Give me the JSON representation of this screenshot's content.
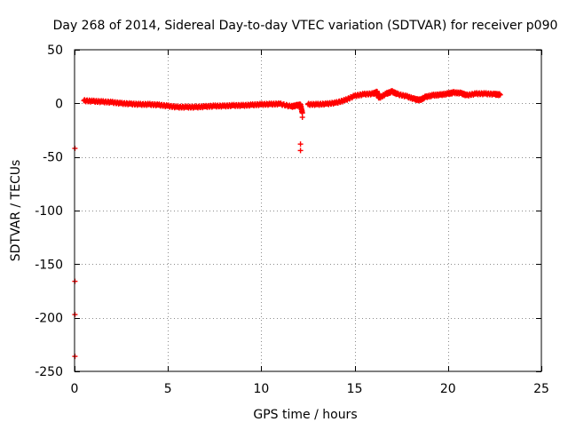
{
  "chart_data": {
    "type": "scatter",
    "title": "Day 268 of 2014, Sidereal Day-to-day VTEC variation (SDTVAR) for receiver p090",
    "xlabel": "GPS time / hours",
    "ylabel": "SDTVAR / TECUs",
    "xlim": [
      0,
      25
    ],
    "ylim": [
      -250,
      50
    ],
    "xticks": [
      0,
      5,
      10,
      15,
      20,
      25
    ],
    "yticks": [
      50,
      0,
      -50,
      -100,
      -150,
      -200,
      -250
    ],
    "grid": true,
    "series_color": "#ff0000",
    "marker": "plus",
    "series": [
      {
        "name": "SDTVAR",
        "points": [
          [
            0.5,
            2.5
          ],
          [
            1.0,
            2.0
          ],
          [
            1.5,
            1.5
          ],
          [
            2.0,
            1.0
          ],
          [
            2.5,
            0.0
          ],
          [
            3.0,
            -0.5
          ],
          [
            3.5,
            -1.0
          ],
          [
            4.0,
            -1.0
          ],
          [
            4.5,
            -1.5
          ],
          [
            5.0,
            -2.5
          ],
          [
            5.5,
            -3.5
          ],
          [
            6.0,
            -3.5
          ],
          [
            6.5,
            -3.5
          ],
          [
            7.0,
            -3.0
          ],
          [
            7.5,
            -2.5
          ],
          [
            8.0,
            -2.5
          ],
          [
            8.5,
            -2.0
          ],
          [
            9.0,
            -2.0
          ],
          [
            9.5,
            -1.5
          ],
          [
            10.0,
            -1.0
          ],
          [
            10.5,
            -0.8
          ],
          [
            11.0,
            -0.5
          ],
          [
            11.6,
            -3.0
          ],
          [
            11.9,
            -2.0
          ],
          [
            12.1,
            -1.5
          ],
          [
            12.2,
            -9.0
          ],
          [
            12.2,
            -13.0
          ],
          [
            12.1,
            -38.0
          ],
          [
            12.1,
            -44.0
          ],
          [
            12.5,
            -1.0
          ],
          [
            13.0,
            -1.0
          ],
          [
            13.5,
            -0.5
          ],
          [
            14.0,
            0.5
          ],
          [
            14.5,
            3.0
          ],
          [
            15.0,
            7.0
          ],
          [
            15.5,
            8.5
          ],
          [
            16.0,
            9.0
          ],
          [
            16.2,
            10.5
          ],
          [
            16.3,
            5.0
          ],
          [
            16.7,
            9.0
          ],
          [
            17.0,
            11.0
          ],
          [
            17.3,
            8.5
          ],
          [
            17.8,
            6.5
          ],
          [
            18.2,
            4.0
          ],
          [
            18.5,
            3.0
          ],
          [
            18.8,
            6.0
          ],
          [
            19.2,
            7.5
          ],
          [
            19.6,
            8.0
          ],
          [
            20.0,
            9.0
          ],
          [
            20.3,
            10.0
          ],
          [
            20.7,
            9.5
          ],
          [
            21.0,
            7.5
          ],
          [
            21.5,
            9.0
          ],
          [
            22.0,
            9.0
          ],
          [
            22.5,
            8.5
          ],
          [
            22.8,
            8.0
          ],
          [
            0.02,
            -42.0
          ],
          [
            0.02,
            -166.0
          ],
          [
            0.02,
            -197.0
          ],
          [
            0.02,
            -236.0
          ]
        ]
      }
    ]
  }
}
